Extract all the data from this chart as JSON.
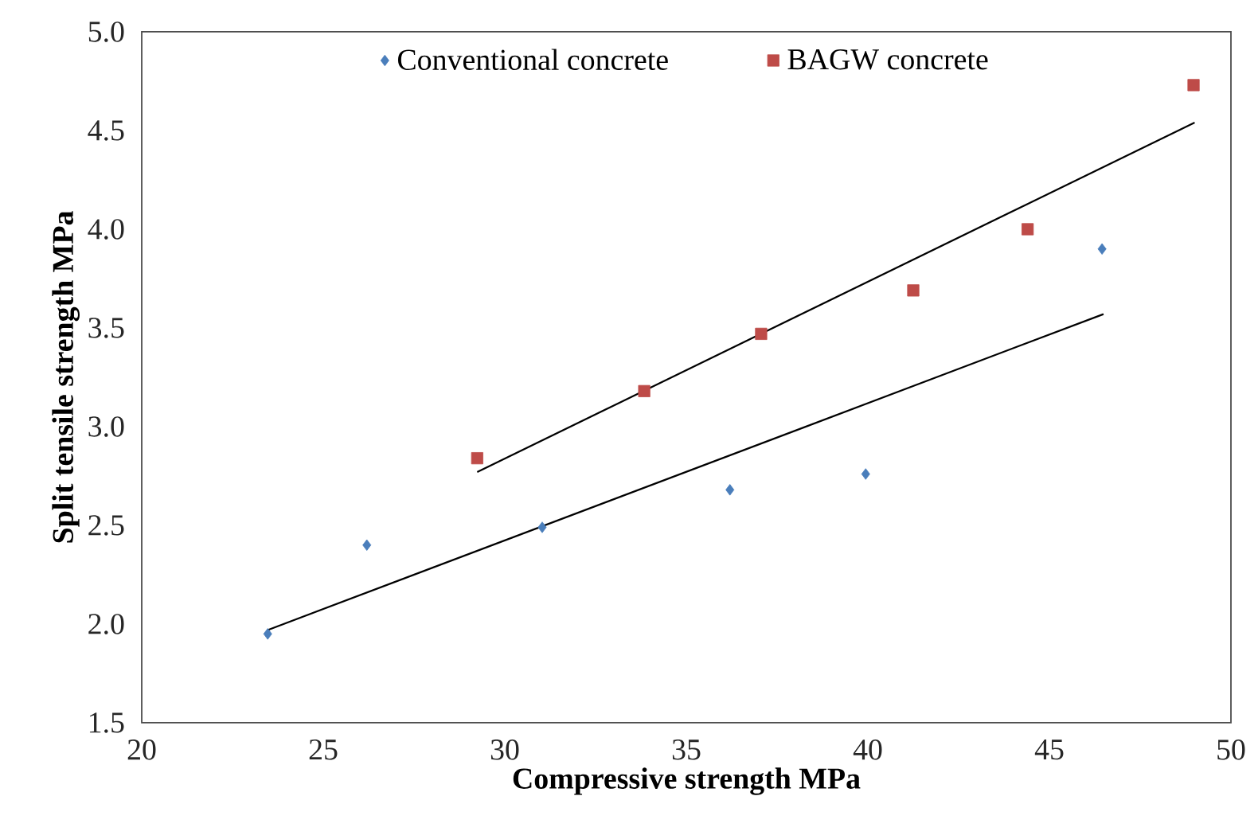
{
  "chart_data": {
    "type": "scatter",
    "xlabel": "Compressive strength MPa",
    "ylabel": "Split tensile strength MPa",
    "xlim": [
      20,
      50
    ],
    "xticks": [
      20,
      25,
      30,
      35,
      40,
      45,
      50
    ],
    "ylim": [
      1.5,
      5.0
    ],
    "yticks": [
      {
        "value": 1.5,
        "label": "1.5"
      },
      {
        "value": 2.0,
        "label": "2.0"
      },
      {
        "value": 2.5,
        "label": "2.5"
      },
      {
        "value": 3.0,
        "label": "3.0"
      },
      {
        "value": 3.5,
        "label": "3.5"
      },
      {
        "value": 4.0,
        "label": "4.0"
      },
      {
        "value": 4.5,
        "label": "4.5"
      },
      {
        "value": 5.0,
        "label": "5.0"
      }
    ],
    "grid": false,
    "legend": "top",
    "series": [
      {
        "name": "Conventional concrete",
        "color": "#4a7ebb",
        "marker": "diamond",
        "x": [
          23.47,
          26.2,
          31.03,
          36.2,
          39.94,
          46.45
        ],
        "values": [
          1.95,
          2.4,
          2.49,
          2.68,
          2.76,
          3.9
        ]
      },
      {
        "name": "BAGW concrete",
        "color": "#be4b48",
        "marker": "square",
        "x": [
          29.24,
          33.84,
          37.06,
          41.25,
          44.4,
          48.97
        ],
        "values": [
          2.84,
          3.18,
          3.47,
          3.69,
          4.0,
          4.73
        ]
      },
      {
        "type": "line",
        "color": "#000000",
        "x": [
          23.47,
          46.49
        ],
        "values": [
          1.97,
          3.57
        ]
      },
      {
        "type": "line",
        "color": "#000000",
        "x": [
          29.24,
          49.0
        ],
        "values": [
          2.77,
          4.54
        ]
      }
    ]
  }
}
